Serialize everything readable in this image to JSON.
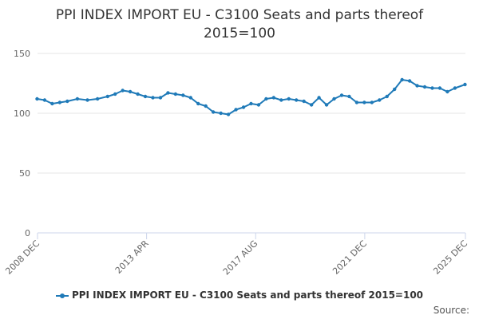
{
  "title_line1": "PPI INDEX IMPORT EU - C3100 Seats and parts thereof",
  "title_line2": "2015=100",
  "source_label": "Source:",
  "colors": {
    "series": "#1f7ab8",
    "grid": "#e6e6e6",
    "axis": "#ccd6eb"
  },
  "chart_data": {
    "type": "line",
    "title": "PPI INDEX IMPORT EU - C3100 Seats and parts thereof 2015=100",
    "xlabel": "",
    "ylabel": "",
    "ylim": [
      0,
      150
    ],
    "yticks": [
      0,
      50,
      100,
      150
    ],
    "xrange": [
      2008.917,
      2025.917
    ],
    "xticks": [
      {
        "label": "2008 DEC",
        "x": 2008.917
      },
      {
        "label": "2013 APR",
        "x": 2013.25
      },
      {
        "label": "2017 AUG",
        "x": 2017.583
      },
      {
        "label": "2021 DEC",
        "x": 2021.917
      },
      {
        "label": "2025 DEC",
        "x": 2025.917
      }
    ],
    "series": [
      {
        "name": "PPI INDEX IMPORT EU - C3100 Seats and parts thereof 2015=100",
        "x": [
          2008.9,
          2009.2,
          2009.5,
          2009.8,
          2010.1,
          2010.5,
          2010.9,
          2011.3,
          2011.7,
          2012.0,
          2012.3,
          2012.6,
          2012.9,
          2013.2,
          2013.5,
          2013.8,
          2014.1,
          2014.4,
          2014.7,
          2015.0,
          2015.3,
          2015.6,
          2015.9,
          2016.2,
          2016.5,
          2016.8,
          2017.1,
          2017.4,
          2017.7,
          2018.0,
          2018.3,
          2018.6,
          2018.9,
          2019.2,
          2019.5,
          2019.8,
          2020.1,
          2020.4,
          2020.7,
          2021.0,
          2021.3,
          2021.6,
          2021.9,
          2022.2,
          2022.5,
          2022.8,
          2023.1,
          2023.4,
          2023.7,
          2024.0,
          2024.3,
          2024.6,
          2024.9,
          2025.2,
          2025.5,
          2025.9
        ],
        "y": [
          112,
          111,
          108,
          109,
          110,
          112,
          111,
          112,
          114,
          116,
          119,
          118,
          116,
          114,
          113,
          113,
          117,
          116,
          115,
          113,
          108,
          106,
          101,
          100,
          99,
          103,
          105,
          108,
          107,
          112,
          113,
          111,
          112,
          111,
          110,
          107,
          113,
          107,
          112,
          115,
          114,
          109,
          109,
          109,
          111,
          114,
          120,
          128,
          127,
          123,
          122,
          121,
          121,
          118,
          121,
          124
        ]
      }
    ]
  }
}
